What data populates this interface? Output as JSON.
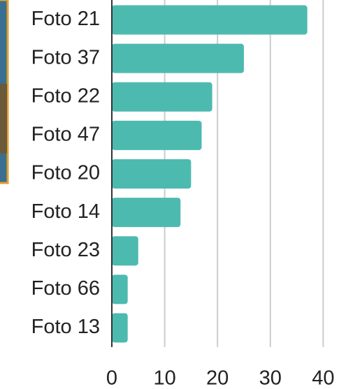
{
  "chart_data": {
    "type": "hbar",
    "categories": [
      "Foto 21",
      "Foto 37",
      "Foto 22",
      "Foto 47",
      "Foto 20",
      "Foto 14",
      "Foto 23",
      "Foto 66",
      "Foto 13"
    ],
    "values": [
      37,
      25,
      19,
      17,
      15,
      13,
      5,
      3,
      3
    ],
    "color": "#4dbab0",
    "xlim": [
      0,
      43
    ],
    "xticks": [
      0,
      10,
      20,
      30,
      40
    ],
    "grid": true
  }
}
